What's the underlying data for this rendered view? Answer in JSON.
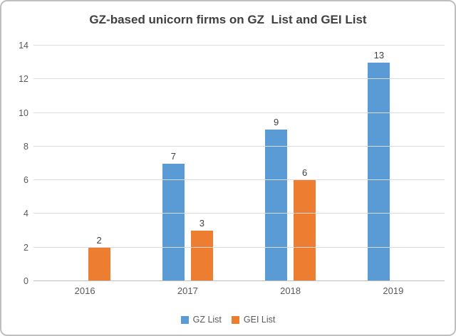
{
  "chart_data": {
    "type": "bar",
    "title": "GZ-based unicorn firms on GZ  List and GEI List",
    "categories": [
      "2016",
      "2017",
      "2018",
      "2019"
    ],
    "series": [
      {
        "name": "GZ List",
        "color": "#5B9BD5",
        "values": [
          null,
          7,
          9,
          13
        ]
      },
      {
        "name": "GEI List",
        "color": "#ED7D31",
        "values": [
          2,
          3,
          6,
          null
        ]
      }
    ],
    "xlabel": "",
    "ylabel": "",
    "ylim": [
      0,
      14
    ],
    "yticks": [
      0,
      2,
      4,
      6,
      8,
      10,
      12,
      14
    ],
    "grid": true,
    "data_labels": true,
    "legend_position": "bottom"
  },
  "colors": {
    "series_gz_list": "#5B9BD5",
    "series_gei_list": "#ED7D31",
    "gridline": "#DCDCDC",
    "axis_line": "#C0C0C0",
    "title_text": "#404040",
    "tick_text": "#595959",
    "data_label_text": "#404040",
    "frame_border": "#BFBFBF",
    "background": "#FFFFFF"
  }
}
